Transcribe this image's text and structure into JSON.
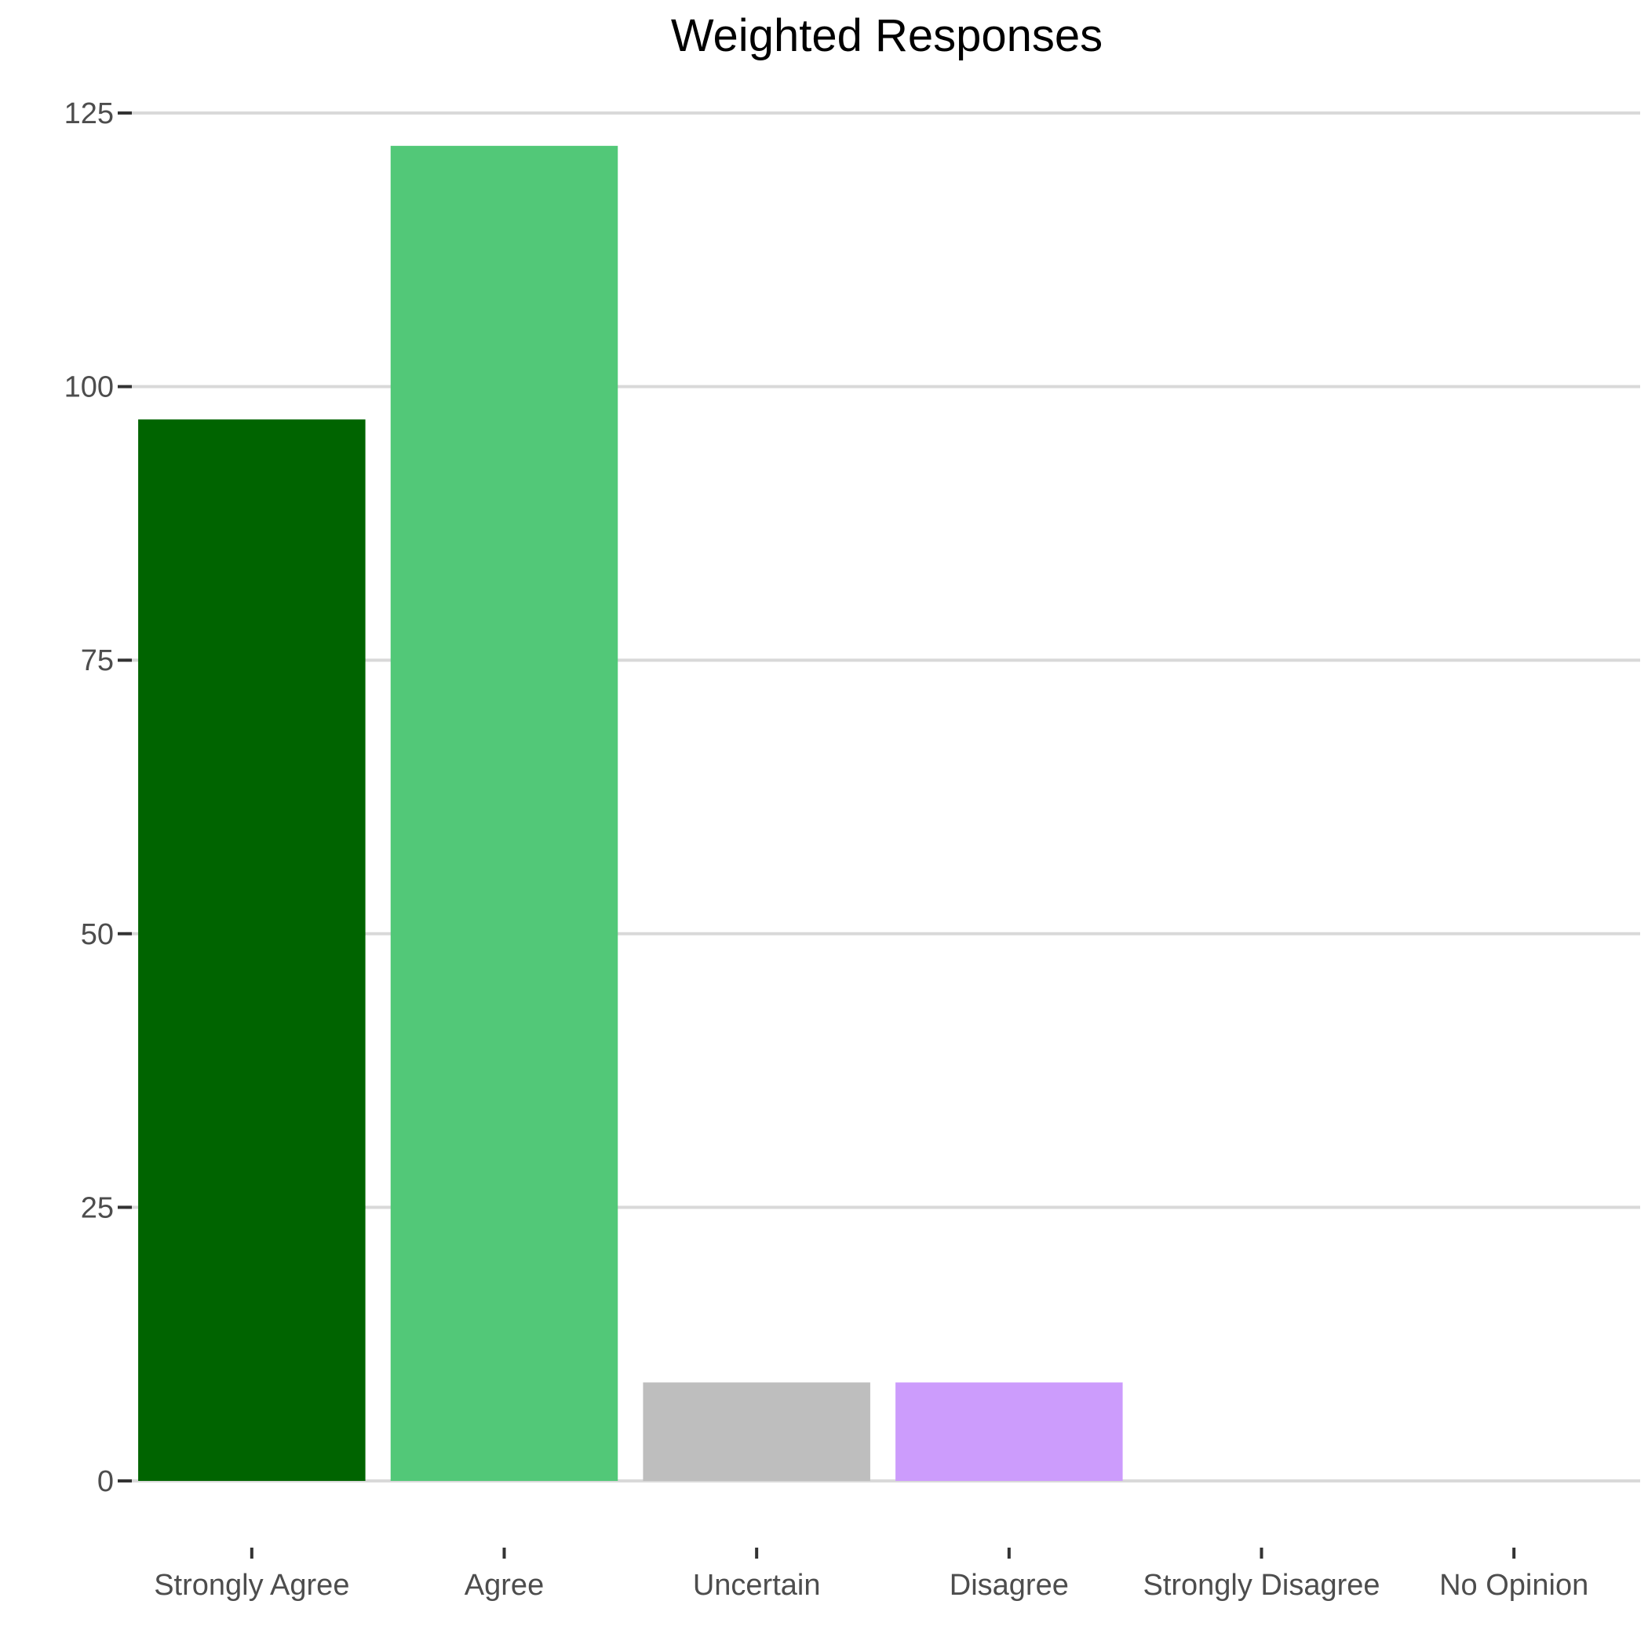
{
  "chart_data": {
    "type": "bar",
    "title": "Weighted Responses",
    "xlabel": "",
    "ylabel": "",
    "categories": [
      "Strongly Agree",
      "Agree",
      "Uncertain",
      "Disagree",
      "Strongly Disagree",
      "No Opinion"
    ],
    "values": [
      97,
      122,
      9,
      9,
      0,
      0
    ],
    "colors": [
      "#006400",
      "#52c878",
      "#bebebe",
      "#cc9cfc",
      "#ff8c8c",
      "#ffd27f"
    ],
    "ylim": [
      0,
      125
    ],
    "yticks": [
      0,
      25,
      50,
      75,
      100,
      125
    ],
    "grid": true,
    "legend": "none"
  }
}
